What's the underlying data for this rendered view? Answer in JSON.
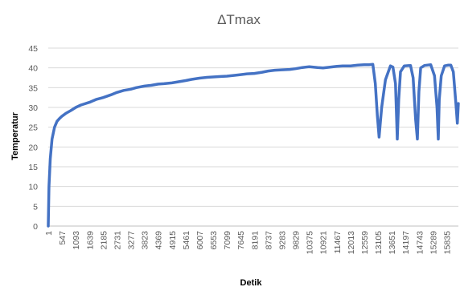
{
  "chart_data": {
    "type": "line",
    "title": "ΔTmax",
    "xlabel": "Detik",
    "ylabel": "Temperatur",
    "ylim": [
      0,
      45
    ],
    "yticks": [
      0,
      5,
      10,
      15,
      20,
      25,
      30,
      35,
      40,
      45
    ],
    "xlim": [
      1,
      16300
    ],
    "xticks": [
      "1",
      "547",
      "1093",
      "1639",
      "2185",
      "2731",
      "3277",
      "3823",
      "4369",
      "4915",
      "5461",
      "6007",
      "6553",
      "7099",
      "7645",
      "8191",
      "8737",
      "9283",
      "9829",
      "10375",
      "10921",
      "11467",
      "12013",
      "12559",
      "13105",
      "13651",
      "14197",
      "14743",
      "15289",
      "15835"
    ],
    "grid": "horizontal",
    "legend": "none",
    "series_color": "#4472c4",
    "series": [
      {
        "x": [
          1,
          30,
          80,
          150,
          250,
          350,
          450,
          547,
          700,
          900,
          1093,
          1300,
          1639,
          1900,
          2185,
          2500,
          2731,
          3000,
          3277,
          3500,
          3823,
          4100,
          4369,
          4600,
          4915,
          5200,
          5461,
          5700,
          6007,
          6300,
          6553,
          6800,
          7099,
          7400,
          7645,
          7900,
          8191,
          8500,
          8737,
          9000,
          9283,
          9600,
          9829,
          10100,
          10375,
          10700,
          10921,
          11200,
          11467,
          11700,
          12013,
          12300,
          12559,
          12750,
          12900,
          13000,
          13080,
          13150,
          13250,
          13400,
          13600,
          13700,
          13800,
          13870,
          13930,
          14000,
          14150,
          14400,
          14500,
          14600,
          14670,
          14730,
          14800,
          14950,
          15200,
          15350,
          15450,
          15500,
          15540,
          15620,
          15750,
          15900,
          16000,
          16100,
          16200,
          16260,
          16300
        ],
        "y": [
          0,
          10,
          17,
          22,
          25,
          26.5,
          27.2,
          27.8,
          28.5,
          29.2,
          30,
          30.6,
          31.3,
          32,
          32.5,
          33.2,
          33.8,
          34.3,
          34.6,
          35,
          35.4,
          35.6,
          35.9,
          36,
          36.2,
          36.5,
          36.8,
          37.1,
          37.4,
          37.6,
          37.7,
          37.8,
          37.9,
          38.1,
          38.3,
          38.5,
          38.6,
          38.9,
          39.2,
          39.4,
          39.5,
          39.6,
          39.8,
          40.1,
          40.3,
          40.1,
          40,
          40.2,
          40.4,
          40.5,
          40.5,
          40.7,
          40.8,
          40.8,
          40.9,
          36,
          28,
          22.5,
          30,
          37,
          40.5,
          40.2,
          36,
          22,
          32,
          39,
          40.5,
          40.6,
          37.5,
          27,
          22,
          34,
          40,
          40.6,
          40.8,
          38,
          30,
          22,
          32,
          38,
          40.5,
          40.7,
          40.7,
          39,
          31,
          26,
          31
        ]
      }
    ]
  }
}
